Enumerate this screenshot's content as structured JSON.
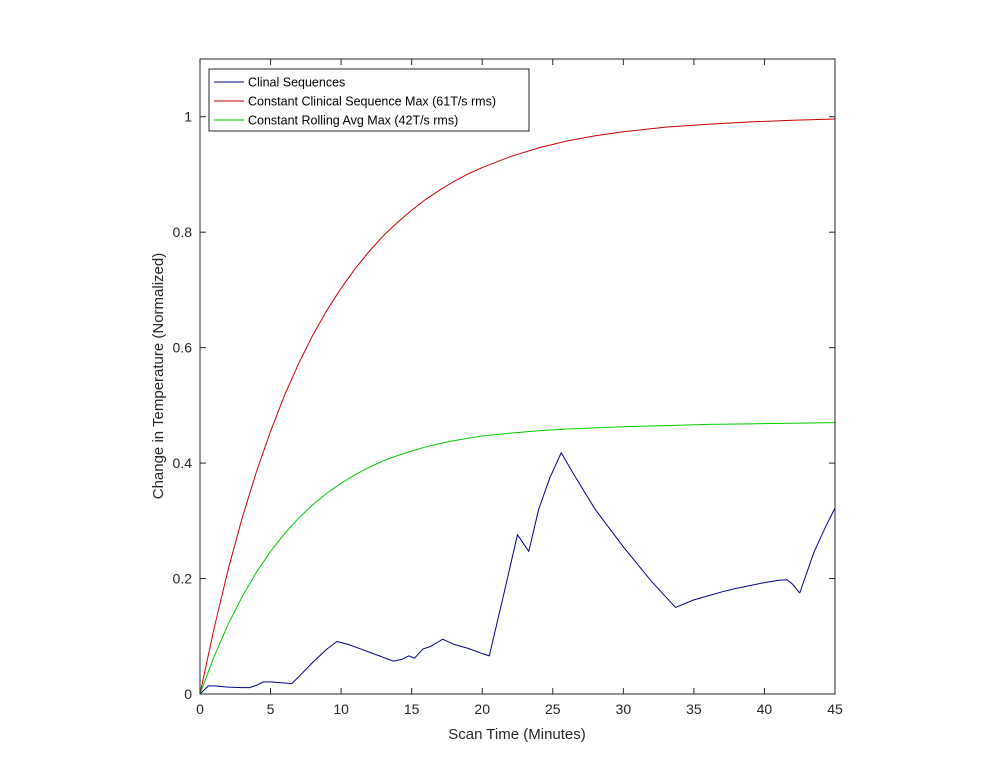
{
  "chart_data": {
    "type": "line",
    "xlabel": "Scan Time (Minutes)",
    "ylabel": "Change in Temperature (Normalized)",
    "xlim": [
      0,
      45
    ],
    "ylim": [
      0,
      1.1
    ],
    "xticks": [
      0,
      5,
      10,
      15,
      20,
      25,
      30,
      35,
      40,
      45
    ],
    "yticks": [
      0,
      0.2,
      0.4,
      0.6,
      0.8,
      1
    ],
    "ytick_labels": [
      "0",
      "0.2",
      "0.4",
      "0.6",
      "0.8",
      "1"
    ],
    "grid": false,
    "legend_position": "top-left",
    "series": [
      {
        "name": "Clinal Sequences",
        "color": "#00008b",
        "x": [
          0,
          0.6,
          1,
          2,
          3,
          3.5,
          4,
          4.5,
          5,
          5.5,
          6,
          6.5,
          7,
          8,
          9,
          9.7,
          10.5,
          11.5,
          12.5,
          13.7,
          14.3,
          14.8,
          15.2,
          15.8,
          16.3,
          16.8,
          17.2,
          18,
          19,
          20,
          20.5,
          21.5,
          22.5,
          23.3,
          24,
          24.8,
          25.6,
          26.5,
          28,
          30,
          32,
          33.7,
          35,
          36,
          37,
          38,
          39,
          40,
          41,
          41.6,
          42,
          42.5,
          43,
          43.5,
          44,
          44.5,
          45
        ],
        "y": [
          0,
          0.014,
          0.014,
          0.012,
          0.011,
          0.011,
          0.015,
          0.021,
          0.021,
          0.02,
          0.019,
          0.018,
          0.03,
          0.055,
          0.078,
          0.091,
          0.086,
          0.077,
          0.068,
          0.057,
          0.06,
          0.066,
          0.062,
          0.078,
          0.082,
          0.089,
          0.095,
          0.086,
          0.079,
          0.07,
          0.066,
          0.17,
          0.276,
          0.247,
          0.32,
          0.375,
          0.418,
          0.38,
          0.32,
          0.255,
          0.195,
          0.15,
          0.163,
          0.17,
          0.177,
          0.183,
          0.188,
          0.193,
          0.197,
          0.198,
          0.19,
          0.175,
          0.21,
          0.245,
          0.272,
          0.298,
          0.322
        ]
      },
      {
        "name": "Constant Clinical Sequence Max (61T/s rms)",
        "color": "#cc0000",
        "x": [
          0,
          1,
          2,
          3,
          4,
          5,
          6,
          7,
          8,
          9,
          10,
          11,
          12,
          13,
          14,
          15,
          16,
          17,
          18,
          19,
          20,
          22,
          24,
          26,
          28,
          30,
          33,
          36,
          39,
          42,
          45
        ],
        "y": [
          0,
          0.114,
          0.216,
          0.306,
          0.385,
          0.455,
          0.518,
          0.573,
          0.622,
          0.665,
          0.703,
          0.737,
          0.767,
          0.794,
          0.817,
          0.838,
          0.857,
          0.873,
          0.888,
          0.901,
          0.912,
          0.931,
          0.946,
          0.958,
          0.967,
          0.974,
          0.982,
          0.987,
          0.991,
          0.994,
          0.996
        ]
      },
      {
        "name": "Constant Rolling Avg Max (42T/s rms)",
        "color": "#00cc00",
        "x": [
          0,
          1,
          2,
          3,
          4,
          5,
          6,
          7,
          8,
          9,
          10,
          11,
          12,
          13,
          14,
          15,
          16,
          17,
          18,
          19,
          20,
          22,
          24,
          26,
          28,
          30,
          33,
          36,
          39,
          42,
          45
        ],
        "y": [
          0,
          0.065,
          0.121,
          0.169,
          0.211,
          0.247,
          0.278,
          0.305,
          0.328,
          0.348,
          0.365,
          0.38,
          0.393,
          0.404,
          0.413,
          0.421,
          0.428,
          0.434,
          0.439,
          0.443,
          0.447,
          0.452,
          0.456,
          0.459,
          0.461,
          0.463,
          0.465,
          0.467,
          0.468,
          0.469,
          0.47
        ]
      }
    ]
  }
}
